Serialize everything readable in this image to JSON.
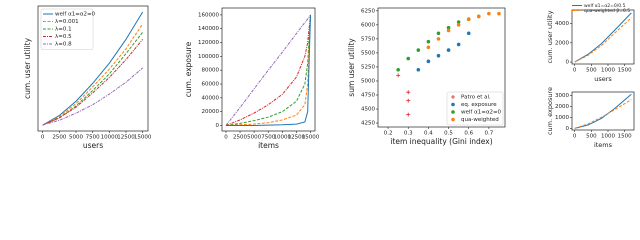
{
  "chart_data": [
    {
      "type": "line",
      "xlabel": "users",
      "ylabel": "cum. user utility",
      "legend": "upper left",
      "x": [
        0,
        2500,
        5000,
        7500,
        10000,
        12500,
        15000
      ],
      "xlim": [
        -700,
        15800
      ],
      "xticks": [
        0,
        2500,
        5000,
        7500,
        10000,
        12500,
        15000
      ],
      "ylim": [
        -5,
        100
      ],
      "series": [
        {
          "name": "welf α1=α2=0",
          "color": "#1f77b4",
          "dash": "solid",
          "values": [
            0,
            8,
            20,
            35,
            52,
            72,
            95
          ]
        },
        {
          "name": "λ=0.001",
          "color": "#ff7f0e",
          "dash": "dashed",
          "values": [
            0,
            7,
            18,
            32,
            47,
            64,
            85
          ]
        },
        {
          "name": "λ=0.1",
          "color": "#2ca02c",
          "dash": "dashed",
          "values": [
            0,
            6,
            16,
            29,
            43,
            60,
            78
          ]
        },
        {
          "name": "λ=0.5",
          "color": "#d62728",
          "dash": "dashdot",
          "values": [
            0,
            6,
            15,
            27,
            40,
            55,
            72
          ]
        },
        {
          "name": "λ=0.8",
          "color": "#9467bd",
          "dash": "dashdot",
          "values": [
            0,
            4,
            10,
            17,
            26,
            36,
            48
          ]
        }
      ]
    },
    {
      "type": "line",
      "xlabel": "items",
      "ylabel": "cum. exposure",
      "x": [
        0,
        2500,
        5000,
        7500,
        10000,
        12500,
        14000,
        14500,
        15000
      ],
      "xlim": [
        -700,
        15800
      ],
      "xticks": [
        0,
        2500,
        5000,
        7500,
        10000,
        12500,
        15000
      ],
      "ylim": [
        -8000,
        170000
      ],
      "yticks": [
        0,
        20000,
        40000,
        60000,
        80000,
        100000,
        120000,
        140000,
        160000
      ],
      "series": [
        {
          "color": "#9467bd",
          "dash": "dashdot",
          "values": [
            0,
            26000,
            53000,
            80000,
            106000,
            133000,
            149000,
            154000,
            160000
          ]
        },
        {
          "color": "#d62728",
          "dash": "dashdot",
          "values": [
            0,
            8000,
            18000,
            30000,
            45000,
            70000,
            100000,
            120000,
            160000
          ]
        },
        {
          "color": "#2ca02c",
          "dash": "dashed",
          "values": [
            0,
            3000,
            7000,
            12000,
            20000,
            35000,
            60000,
            90000,
            160000
          ]
        },
        {
          "color": "#ff7f0e",
          "dash": "dashed",
          "values": [
            0,
            1000,
            2000,
            4000,
            8000,
            15000,
            30000,
            60000,
            160000
          ]
        },
        {
          "color": "#1f77b4",
          "dash": "solid",
          "values": [
            0,
            0,
            0,
            500,
            1000,
            2000,
            5000,
            20000,
            160000
          ]
        }
      ]
    },
    {
      "type": "scatter",
      "xlabel": "item inequality (Gini index)",
      "ylabel": "sum user utility",
      "legend": "lower right",
      "xlim": [
        0.15,
        0.78
      ],
      "xticks": [
        0.2,
        0.3,
        0.4,
        0.5,
        0.6,
        0.7
      ],
      "ylim": [
        4180,
        6300
      ],
      "yticks": [
        4250,
        4500,
        4750,
        5000,
        5250,
        5500,
        5750,
        6000,
        6250
      ],
      "series": [
        {
          "name": "Patro et al.",
          "color": "#d62728",
          "marker": "plus",
          "x": [
            0.25,
            0.3,
            0.3,
            0.3
          ],
          "y": [
            5100,
            4800,
            4650,
            4400
          ]
        },
        {
          "name": "eq. exposure",
          "color": "#1f77b4",
          "marker": "circle",
          "x": [
            0.35,
            0.4,
            0.45,
            0.5,
            0.55,
            0.6
          ],
          "y": [
            5200,
            5350,
            5450,
            5550,
            5650,
            5850
          ]
        },
        {
          "name": "welf α1=α2=0",
          "color": "#2ca02c",
          "marker": "circle",
          "x": [
            0.25,
            0.3,
            0.35,
            0.4,
            0.45,
            0.5,
            0.55,
            0.6,
            0.65
          ],
          "y": [
            5200,
            5400,
            5550,
            5700,
            5850,
            5950,
            6050,
            6100,
            6150
          ]
        },
        {
          "name": "qua-weighted",
          "color": "#ff7f0e",
          "marker": "circle",
          "x": [
            0.4,
            0.45,
            0.5,
            0.55,
            0.6,
            0.65,
            0.7,
            0.75
          ],
          "y": [
            5600,
            5750,
            5900,
            6000,
            6100,
            6150,
            6200,
            6200
          ]
        }
      ]
    },
    {
      "type": "line",
      "xlabel": "users",
      "ylabel": "cum. user utility",
      "legend": "top",
      "x": [
        0,
        400,
        800,
        1200,
        1700
      ],
      "xlim": [
        -80,
        1780
      ],
      "xticks": [
        0,
        500,
        1000,
        1500
      ],
      "ylim": [
        -200,
        5400
      ],
      "yticks": [
        0,
        2000,
        4000
      ],
      "series": [
        {
          "name": "welf α1=α2=0/0.5",
          "color": "#1f77b4",
          "dash": "solid",
          "values": [
            0,
            800,
            1900,
            3300,
            5100
          ]
        },
        {
          "name": "qua-weighted β=0.5",
          "color": "#ff7f0e",
          "dash": "dashed",
          "values": [
            0,
            700,
            1700,
            3000,
            4600
          ]
        }
      ]
    },
    {
      "type": "line",
      "xlabel": "items",
      "ylabel": "cum. exposure",
      "x": [
        0,
        400,
        800,
        1200,
        1700
      ],
      "xlim": [
        -80,
        1780
      ],
      "xticks": [
        0,
        500,
        1000,
        1500
      ],
      "ylim": [
        -150,
        3300
      ],
      "yticks": [
        0,
        1000,
        2000,
        3000
      ],
      "series": [
        {
          "color": "#1f77b4",
          "dash": "solid",
          "values": [
            0,
            300,
            900,
            1800,
            3100
          ]
        },
        {
          "color": "#ff7f0e",
          "dash": "dashed",
          "values": [
            0,
            400,
            1000,
            1700,
            2600
          ]
        }
      ]
    }
  ]
}
